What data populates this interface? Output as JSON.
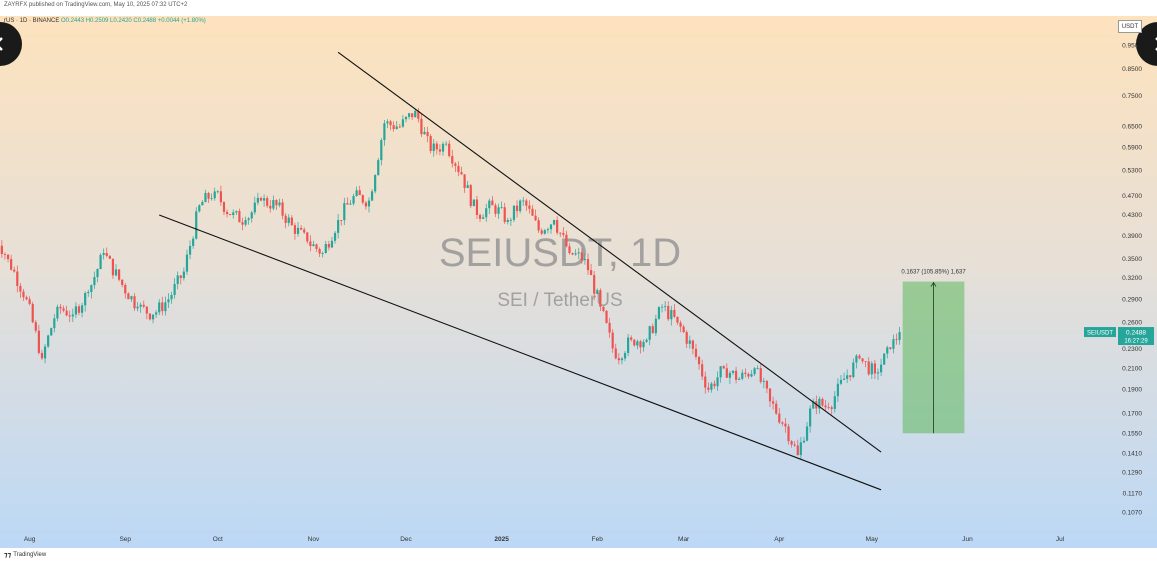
{
  "header": {
    "published": "ZAYRFX published on TradingView.com, May 10, 2025 07:32 UTC+2",
    "symbol_line": "rUS · 1D · BINANCE",
    "ohlc": "O0.2443 H0.2509 L0.2420 C0.2488 +0.0044 (+1.80%)"
  },
  "currency": "USDT",
  "logo_text": "TradingView",
  "colors": {
    "up": "#26a69a",
    "down": "#ef5350",
    "bg_top": "#fde2bd",
    "bg_bottom": "#bcd8f6",
    "target_box": "#5cb85c",
    "price_tag": "#26a69a"
  },
  "chart_data": {
    "type": "candlestick",
    "watermark_title": "SEIUSDT, 1D",
    "watermark_subtitle": "SEI / TetherUS",
    "y_scale": "log",
    "ylim": [
      0.095,
      1.05
    ],
    "price_ticks": [
      "0.9500",
      "0.8500",
      "0.7500",
      "0.6500",
      "0.5900",
      "0.5300",
      "0.4700",
      "0.4300",
      "0.3900",
      "0.3500",
      "0.3200",
      "0.2900",
      "0.2600",
      "0.2300",
      "0.2100",
      "0.1900",
      "0.1700",
      "0.1550",
      "0.1410",
      "0.1290",
      "0.1170",
      "0.1070"
    ],
    "x_labels": [
      {
        "label": "Aug",
        "date": "2024-08-01"
      },
      {
        "label": "Sep",
        "date": "2024-09-01"
      },
      {
        "label": "Oct",
        "date": "2024-10-01"
      },
      {
        "label": "Nov",
        "date": "2024-11-01"
      },
      {
        "label": "Dec",
        "date": "2024-12-01"
      },
      {
        "label": "2025",
        "date": "2025-01-01"
      },
      {
        "label": "Feb",
        "date": "2025-02-01"
      },
      {
        "label": "Mar",
        "date": "2025-03-01"
      },
      {
        "label": "Apr",
        "date": "2025-04-01"
      },
      {
        "label": "May",
        "date": "2025-05-01"
      },
      {
        "label": "Jun",
        "date": "2025-06-01"
      },
      {
        "label": "Jul",
        "date": "2025-07-01"
      }
    ],
    "candles": [
      {
        "date": "2024-07-20",
        "close": 0.4
      },
      {
        "date": "2024-07-25",
        "close": 0.35
      },
      {
        "date": "2024-07-31",
        "close": 0.29
      },
      {
        "date": "2024-08-05",
        "close": 0.22
      },
      {
        "date": "2024-08-10",
        "close": 0.28
      },
      {
        "date": "2024-08-15",
        "close": 0.27
      },
      {
        "date": "2024-08-20",
        "close": 0.3
      },
      {
        "date": "2024-08-25",
        "close": 0.36
      },
      {
        "date": "2024-08-31",
        "close": 0.31
      },
      {
        "date": "2024-09-05",
        "close": 0.28
      },
      {
        "date": "2024-09-10",
        "close": 0.27
      },
      {
        "date": "2024-09-15",
        "close": 0.29
      },
      {
        "date": "2024-09-20",
        "close": 0.33
      },
      {
        "date": "2024-09-25",
        "close": 0.45
      },
      {
        "date": "2024-09-30",
        "close": 0.48
      },
      {
        "date": "2024-10-05",
        "close": 0.43
      },
      {
        "date": "2024-10-10",
        "close": 0.42
      },
      {
        "date": "2024-10-15",
        "close": 0.46
      },
      {
        "date": "2024-10-20",
        "close": 0.45
      },
      {
        "date": "2024-10-25",
        "close": 0.41
      },
      {
        "date": "2024-10-30",
        "close": 0.38
      },
      {
        "date": "2024-11-04",
        "close": 0.36
      },
      {
        "date": "2024-11-09",
        "close": 0.42
      },
      {
        "date": "2024-11-14",
        "close": 0.47
      },
      {
        "date": "2024-11-19",
        "close": 0.46
      },
      {
        "date": "2024-11-24",
        "close": 0.66
      },
      {
        "date": "2024-11-29",
        "close": 0.65
      },
      {
        "date": "2024-12-04",
        "close": 0.7
      },
      {
        "date": "2024-12-09",
        "close": 0.58
      },
      {
        "date": "2024-12-14",
        "close": 0.6
      },
      {
        "date": "2024-12-19",
        "close": 0.52
      },
      {
        "date": "2024-12-24",
        "close": 0.43
      },
      {
        "date": "2024-12-29",
        "close": 0.45
      },
      {
        "date": "2025-01-03",
        "close": 0.42
      },
      {
        "date": "2025-01-08",
        "close": 0.46
      },
      {
        "date": "2025-01-13",
        "close": 0.4
      },
      {
        "date": "2025-01-18",
        "close": 0.42
      },
      {
        "date": "2025-01-23",
        "close": 0.36
      },
      {
        "date": "2025-01-28",
        "close": 0.35
      },
      {
        "date": "2025-02-02",
        "close": 0.28
      },
      {
        "date": "2025-02-07",
        "close": 0.22
      },
      {
        "date": "2025-02-12",
        "close": 0.24
      },
      {
        "date": "2025-02-17",
        "close": 0.24
      },
      {
        "date": "2025-02-22",
        "close": 0.28
      },
      {
        "date": "2025-02-27",
        "close": 0.26
      },
      {
        "date": "2025-03-04",
        "close": 0.23
      },
      {
        "date": "2025-03-09",
        "close": 0.19
      },
      {
        "date": "2025-03-14",
        "close": 0.21
      },
      {
        "date": "2025-03-19",
        "close": 0.2
      },
      {
        "date": "2025-03-24",
        "close": 0.21
      },
      {
        "date": "2025-03-29",
        "close": 0.18
      },
      {
        "date": "2025-04-03",
        "close": 0.16
      },
      {
        "date": "2025-04-07",
        "close": 0.14
      },
      {
        "date": "2025-04-12",
        "close": 0.18
      },
      {
        "date": "2025-04-17",
        "close": 0.175
      },
      {
        "date": "2025-04-22",
        "close": 0.2
      },
      {
        "date": "2025-04-27",
        "close": 0.22
      },
      {
        "date": "2025-05-02",
        "close": 0.205
      },
      {
        "date": "2025-05-07",
        "close": 0.23
      },
      {
        "date": "2025-05-10",
        "close": 0.2488
      }
    ],
    "trendlines": [
      {
        "name": "resistance",
        "from": {
          "date": "2024-11-09",
          "price": 0.92
        },
        "to": {
          "date": "2025-05-04",
          "price": 0.142
        }
      },
      {
        "name": "support",
        "from": {
          "date": "2024-09-12",
          "price": 0.43
        },
        "to": {
          "date": "2025-05-04",
          "price": 0.119
        }
      }
    ],
    "projection": {
      "label": "0.1637 (105.85%) 1,637",
      "from_date": "2025-05-11",
      "to_date": "2025-05-31",
      "low": 0.155,
      "high": 0.315
    },
    "last_price": "0.2488",
    "last_symbol": "SEIUSDT",
    "countdown": "16:27:29"
  }
}
